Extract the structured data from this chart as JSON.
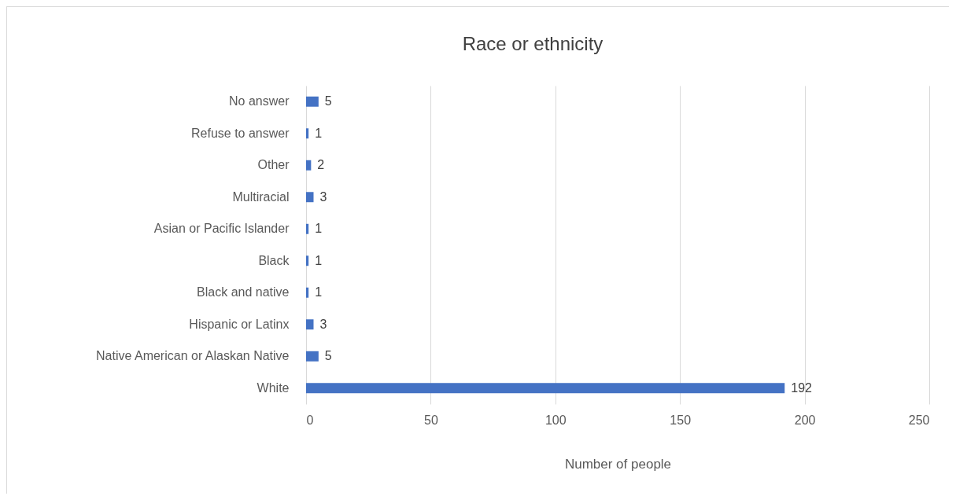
{
  "chart_data": {
    "type": "bar",
    "orientation": "horizontal",
    "title": "Race or ethnicity",
    "xlabel": "Number of people",
    "categories": [
      "No answer",
      "Refuse to answer",
      "Other",
      "Multiracial",
      "Asian or Pacific Islander",
      "Black",
      "Black and native",
      "Hispanic or Latinx",
      "Native American or Alaskan Native",
      "White"
    ],
    "values": [
      5,
      1,
      2,
      3,
      1,
      1,
      1,
      3,
      5,
      192
    ],
    "color": "#4472c4",
    "xlim": [
      0,
      250
    ],
    "xticks": [
      0,
      50,
      100,
      150,
      200,
      250
    ],
    "grid": "x",
    "data_labels": true
  }
}
